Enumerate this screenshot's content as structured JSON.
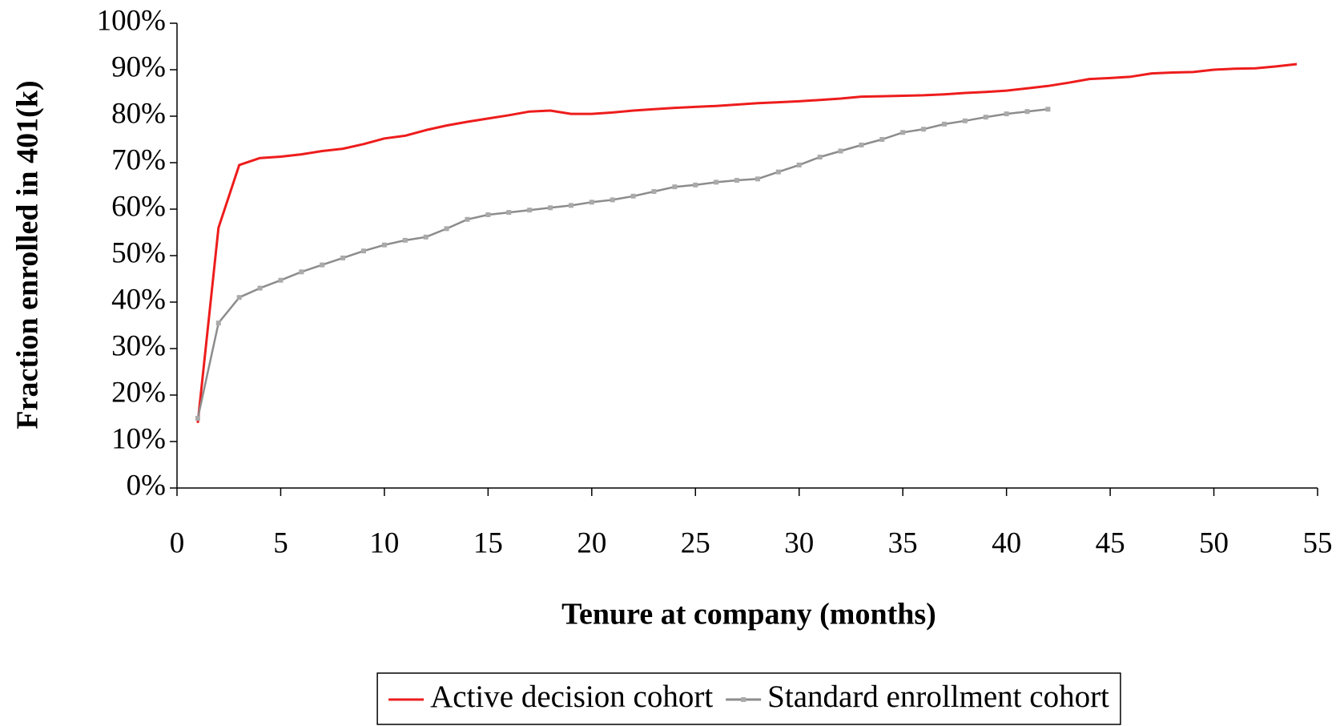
{
  "chart_data": {
    "type": "line",
    "xlabel": "Tenure at company (months)",
    "ylabel": "Fraction enrolled in 401(k)",
    "xlim": [
      0,
      55
    ],
    "xticks": [
      0,
      5,
      10,
      15,
      20,
      25,
      30,
      35,
      40,
      45,
      50,
      55
    ],
    "ylim": [
      0,
      100
    ],
    "yticks": [
      {
        "value": 0,
        "label": "0%"
      },
      {
        "value": 10,
        "label": "10%"
      },
      {
        "value": 20,
        "label": "20%"
      },
      {
        "value": 30,
        "label": "30%"
      },
      {
        "value": 40,
        "label": "40%"
      },
      {
        "value": 50,
        "label": "50%"
      },
      {
        "value": 60,
        "label": "60%"
      },
      {
        "value": 70,
        "label": "70%"
      },
      {
        "value": 80,
        "label": "80%"
      },
      {
        "value": 90,
        "label": "90%"
      },
      {
        "value": 100,
        "label": "100%"
      }
    ],
    "grid": false,
    "legend": "bottom",
    "series": [
      {
        "name": "Active decision cohort",
        "color": "#ee1c1c",
        "marker": false,
        "x": [
          1,
          2,
          3,
          4,
          5,
          6,
          7,
          8,
          9,
          10,
          11,
          12,
          13,
          14,
          15,
          16,
          17,
          18,
          19,
          20,
          21,
          22,
          23,
          24,
          25,
          26,
          27,
          28,
          29,
          30,
          31,
          32,
          33,
          34,
          35,
          36,
          37,
          38,
          39,
          40,
          41,
          42,
          43,
          44,
          45,
          46,
          47,
          48,
          49,
          50,
          51,
          52,
          53,
          54
        ],
        "values": [
          14,
          56,
          69.5,
          71,
          71.3,
          71.8,
          72.5,
          73,
          74,
          75.2,
          75.8,
          77,
          78,
          78.8,
          79.5,
          80.2,
          81,
          81.2,
          80.5,
          80.5,
          80.8,
          81.2,
          81.5,
          81.8,
          82,
          82.2,
          82.5,
          82.8,
          83,
          83.2,
          83.5,
          83.8,
          84.2,
          84.3,
          84.4,
          84.5,
          84.7,
          85,
          85.2,
          85.5,
          86,
          86.5,
          87.2,
          88,
          88.2,
          88.5,
          89.2,
          89.4,
          89.5,
          90,
          90.2,
          90.3,
          90.7,
          91.2
        ]
      },
      {
        "name": "Standard enrollment cohort",
        "color": "#8c8c8c",
        "marker": true,
        "x": [
          1,
          2,
          3,
          4,
          5,
          6,
          7,
          8,
          9,
          10,
          11,
          12,
          13,
          14,
          15,
          16,
          17,
          18,
          19,
          20,
          21,
          22,
          23,
          24,
          25,
          26,
          27,
          28,
          29,
          30,
          31,
          32,
          33,
          34,
          35,
          36,
          37,
          38,
          39,
          40,
          41,
          42
        ],
        "values": [
          15,
          35.5,
          41,
          43,
          44.7,
          46.5,
          48,
          49.5,
          51,
          52.3,
          53.3,
          54,
          55.8,
          57.8,
          58.8,
          59.3,
          59.8,
          60.3,
          60.8,
          61.5,
          62,
          62.8,
          63.8,
          64.8,
          65.2,
          65.8,
          66.2,
          66.5,
          68,
          69.5,
          71.2,
          72.5,
          73.8,
          75,
          76.5,
          77.2,
          78.3,
          79,
          79.8,
          80.5,
          81,
          81.5
        ]
      }
    ]
  }
}
